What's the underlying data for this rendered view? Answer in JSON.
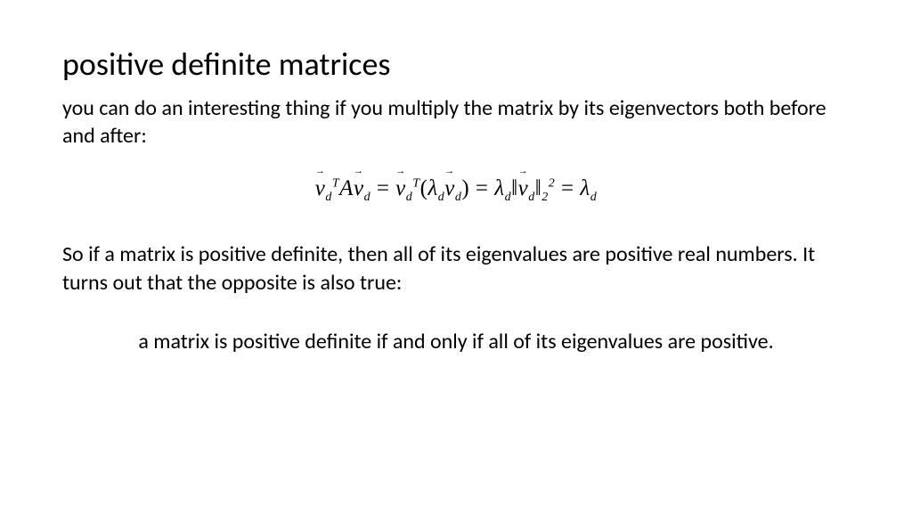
{
  "slide": {
    "title": "positive definite matrices",
    "intro": "you can do an interesting thing if you multiply the matrix by its eigenvectors both before and after:",
    "conclusion": "So if a matrix is positive definite, then all of its eigenvalues are positive real numbers.  It turns out that the opposite is also true:",
    "theorem": "a matrix is positive definite if and only if all of its eigenvalues are positive.",
    "equation": {
      "v": "v",
      "sub_d": "d",
      "sup_T": "T",
      "A": "A",
      "lambda": "λ",
      "norm_sub": "2",
      "norm_sup": "2"
    },
    "colors": {
      "background": "#ffffff",
      "text": "#000000"
    },
    "fonts": {
      "body_family": "Calibri",
      "math_family": "Cambria Math",
      "title_size": 36,
      "body_size": 24,
      "equation_size": 25
    }
  }
}
